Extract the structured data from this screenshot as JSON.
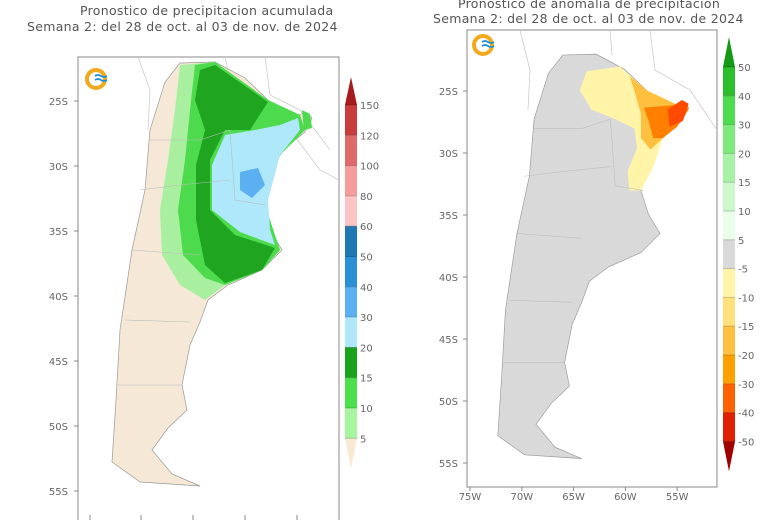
{
  "left_map": {
    "title_line1": "Pronostico de precipitacion acumulada",
    "title_line2": "Semana 2: del 28 de oct. al 03 de nov. de 2024",
    "lat_labels": [
      "25S",
      "30S",
      "35S",
      "40S",
      "45S",
      "50S",
      "55S"
    ],
    "colorbar": {
      "labels": [
        "150",
        "120",
        "100",
        "80",
        "60",
        "50",
        "40",
        "30",
        "20",
        "15",
        "10",
        "5"
      ],
      "colors": [
        "#a61c1c",
        "#c83c3c",
        "#e06a6a",
        "#f59c9c",
        "#fcc5c5",
        "#1f78b4",
        "#2b8fd6",
        "#5ab0f0",
        "#aee8fa",
        "#1aa31a",
        "#4ce04c",
        "#a8f5a0",
        "#f8e8d4"
      ]
    },
    "colors": {
      "land": "#f5e8d6",
      "light_green": "#a8f0a0",
      "green": "#4ddb4d",
      "dark_green": "#1fa51f",
      "light_blue": "#aee8fa",
      "blue": "#5ab0f0"
    }
  },
  "right_map": {
    "title_line1": "Pronostico de anomalia de precipitacion",
    "title_line2": "Semana 2: del 28 de oct. al 03 de nov. de 2024",
    "lat_labels": [
      "25S",
      "30S",
      "35S",
      "40S",
      "45S",
      "50S",
      "55S"
    ],
    "lon_labels": [
      "75W",
      "70W",
      "65W",
      "60W",
      "55W"
    ],
    "colorbar": {
      "labels": [
        "50",
        "40",
        "30",
        "20",
        "15",
        "10",
        "5",
        "-5",
        "-10",
        "-15",
        "-20",
        "-30",
        "-40",
        "-50"
      ],
      "colors": [
        "#149a14",
        "#2cbf2c",
        "#4ddc4d",
        "#7eea7e",
        "#a8f2a8",
        "#ccf8cc",
        "#eaffea",
        "#d9d9d9",
        "#fff4a8",
        "#ffe07a",
        "#ffc040",
        "#ffa000",
        "#ff6000",
        "#e02000",
        "#a00000"
      ]
    },
    "colors": {
      "land": "#d9d9d9",
      "yellow": "#fff4a8",
      "light_orange": "#ffc040",
      "orange": "#ff8000",
      "red_orange": "#ff4a00"
    }
  }
}
